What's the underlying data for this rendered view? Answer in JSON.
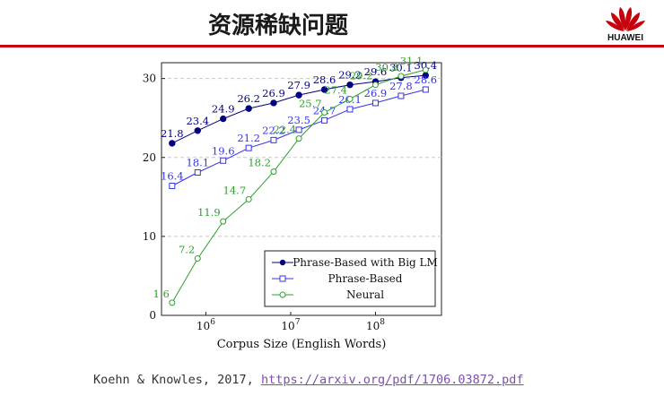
{
  "slide": {
    "title": "资源稀缺问题"
  },
  "logo": {
    "text": "HUAWEI",
    "brand_color": "#c7000b"
  },
  "citation": {
    "prefix": "Koehn & Knowles, 2017,",
    "link": "https://arxiv.org/pdf/1706.03872.pdf"
  },
  "chart_data": {
    "type": "line",
    "xlabel": "Corpus Size (English Words)",
    "ylabel": "",
    "x_scale": "log",
    "ylim": [
      0,
      32
    ],
    "xlim": [
      300000,
      600000000
    ],
    "y_ticks": [
      "0",
      "10",
      "20",
      "30"
    ],
    "y_tick_values": [
      0,
      10,
      20,
      30
    ],
    "x_ticks": [
      {
        "base": "10",
        "exp": "6",
        "value": 1000000
      },
      {
        "base": "10",
        "exp": "7",
        "value": 10000000
      },
      {
        "base": "10",
        "exp": "8",
        "value": 100000000
      }
    ],
    "grid": "horizontal dashed",
    "legend_placement": "bottom-right",
    "series": [
      {
        "name": "Phrase-Based with Big LM",
        "color": "#000080",
        "marker": "filled-circle",
        "x": [
          400000,
          800000,
          1600000,
          3200000,
          6300000,
          12500000,
          25000000,
          50000000,
          100000000,
          200000000,
          390000000
        ],
        "values": [
          21.8,
          23.4,
          24.9,
          26.2,
          26.9,
          27.9,
          28.6,
          29.2,
          29.6,
          30.1,
          30.4
        ],
        "labels": [
          "21.8",
          "23.4",
          "24.9",
          "26.2",
          "26.9",
          "27.9",
          "28.6",
          "29.2",
          "29.6",
          "30.1",
          "30.4"
        ]
      },
      {
        "name": "Phrase-Based",
        "color": "#3333ee",
        "marker": "open-square",
        "x": [
          400000,
          800000,
          1600000,
          3200000,
          6300000,
          12500000,
          25000000,
          50000000,
          100000000,
          200000000,
          390000000
        ],
        "values": [
          16.4,
          18.1,
          19.6,
          21.2,
          22.2,
          23.5,
          24.7,
          26.1,
          26.9,
          27.8,
          28.6
        ],
        "labels": [
          "16.4",
          "18.1",
          "19.6",
          "21.2",
          "22.2",
          "23.5",
          "24.7",
          "26.1",
          "26.9",
          "27.8",
          "28.6"
        ]
      },
      {
        "name": "Neural",
        "color": "#2ca02c",
        "marker": "open-circle",
        "x": [
          400000,
          800000,
          1600000,
          3200000,
          6300000,
          12500000,
          25000000,
          50000000,
          100000000,
          200000000,
          390000000
        ],
        "values": [
          1.6,
          7.2,
          11.9,
          14.7,
          18.2,
          22.4,
          25.7,
          27.4,
          29.2,
          30.3,
          31.1
        ],
        "labels": [
          "1.6",
          "7.2",
          "11.9",
          "14.7",
          "18.2",
          "22.4",
          "25.7",
          "27.4",
          "29.2",
          "30.3",
          "31.1"
        ]
      }
    ]
  }
}
